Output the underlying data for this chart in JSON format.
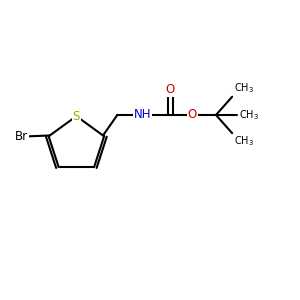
{
  "background_color": "#ffffff",
  "bond_color": "#000000",
  "S_color": "#9aaa00",
  "Br_color": "#000000",
  "N_color": "#0000cc",
  "O_color": "#cc0000",
  "bond_width": 1.5,
  "font_size_atoms": 8.5,
  "font_size_methyl": 7.0,
  "figsize": [
    3.0,
    3.0
  ],
  "dpi": 100,
  "xlim": [
    0,
    10
  ],
  "ylim": [
    0,
    10
  ]
}
